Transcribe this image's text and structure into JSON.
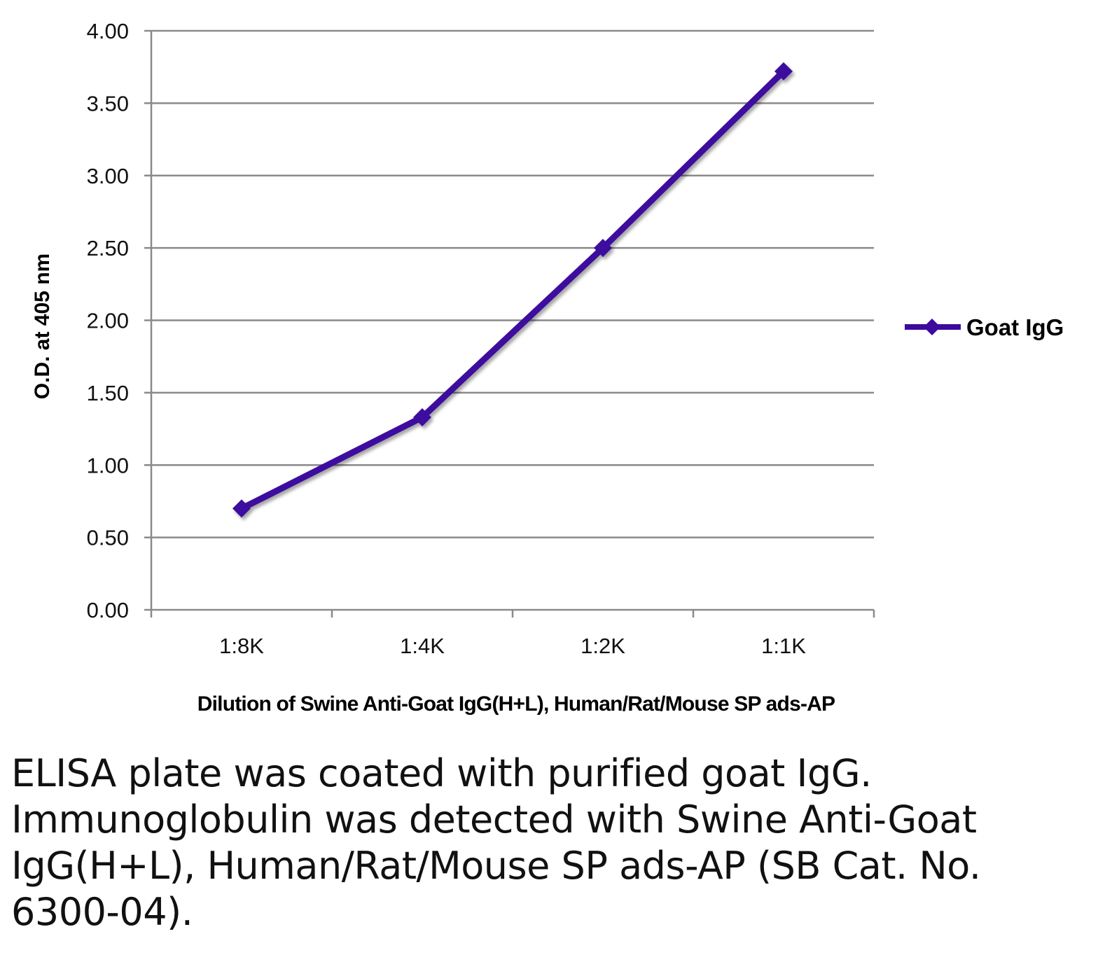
{
  "chart_data": {
    "type": "line",
    "categories": [
      "1:8K",
      "1:4K",
      "1:2K",
      "1:1K"
    ],
    "series": [
      {
        "name": "Goat IgG",
        "values": [
          0.7,
          1.33,
          2.5,
          3.72
        ],
        "color": "#3D0A9E"
      }
    ],
    "xlabel": "Dilution of Swine Anti-Goat IgG(H+L), Human/Rat/Mouse SP ads-AP",
    "ylabel": "O.D. at 405 nm",
    "ylim": [
      0,
      4
    ],
    "yticks": [
      "0.00",
      "0.50",
      "1.00",
      "1.50",
      "2.00",
      "2.50",
      "3.00",
      "3.50",
      "4.00"
    ],
    "grid": true,
    "legend_position": "right"
  },
  "caption": "ELISA plate was coated with purified goat IgG.  Immunoglobulin was detected with Swine Anti-Goat IgG(H+L), Human/Rat/Mouse SP ads-AP (SB Cat. No. 6300-04)."
}
